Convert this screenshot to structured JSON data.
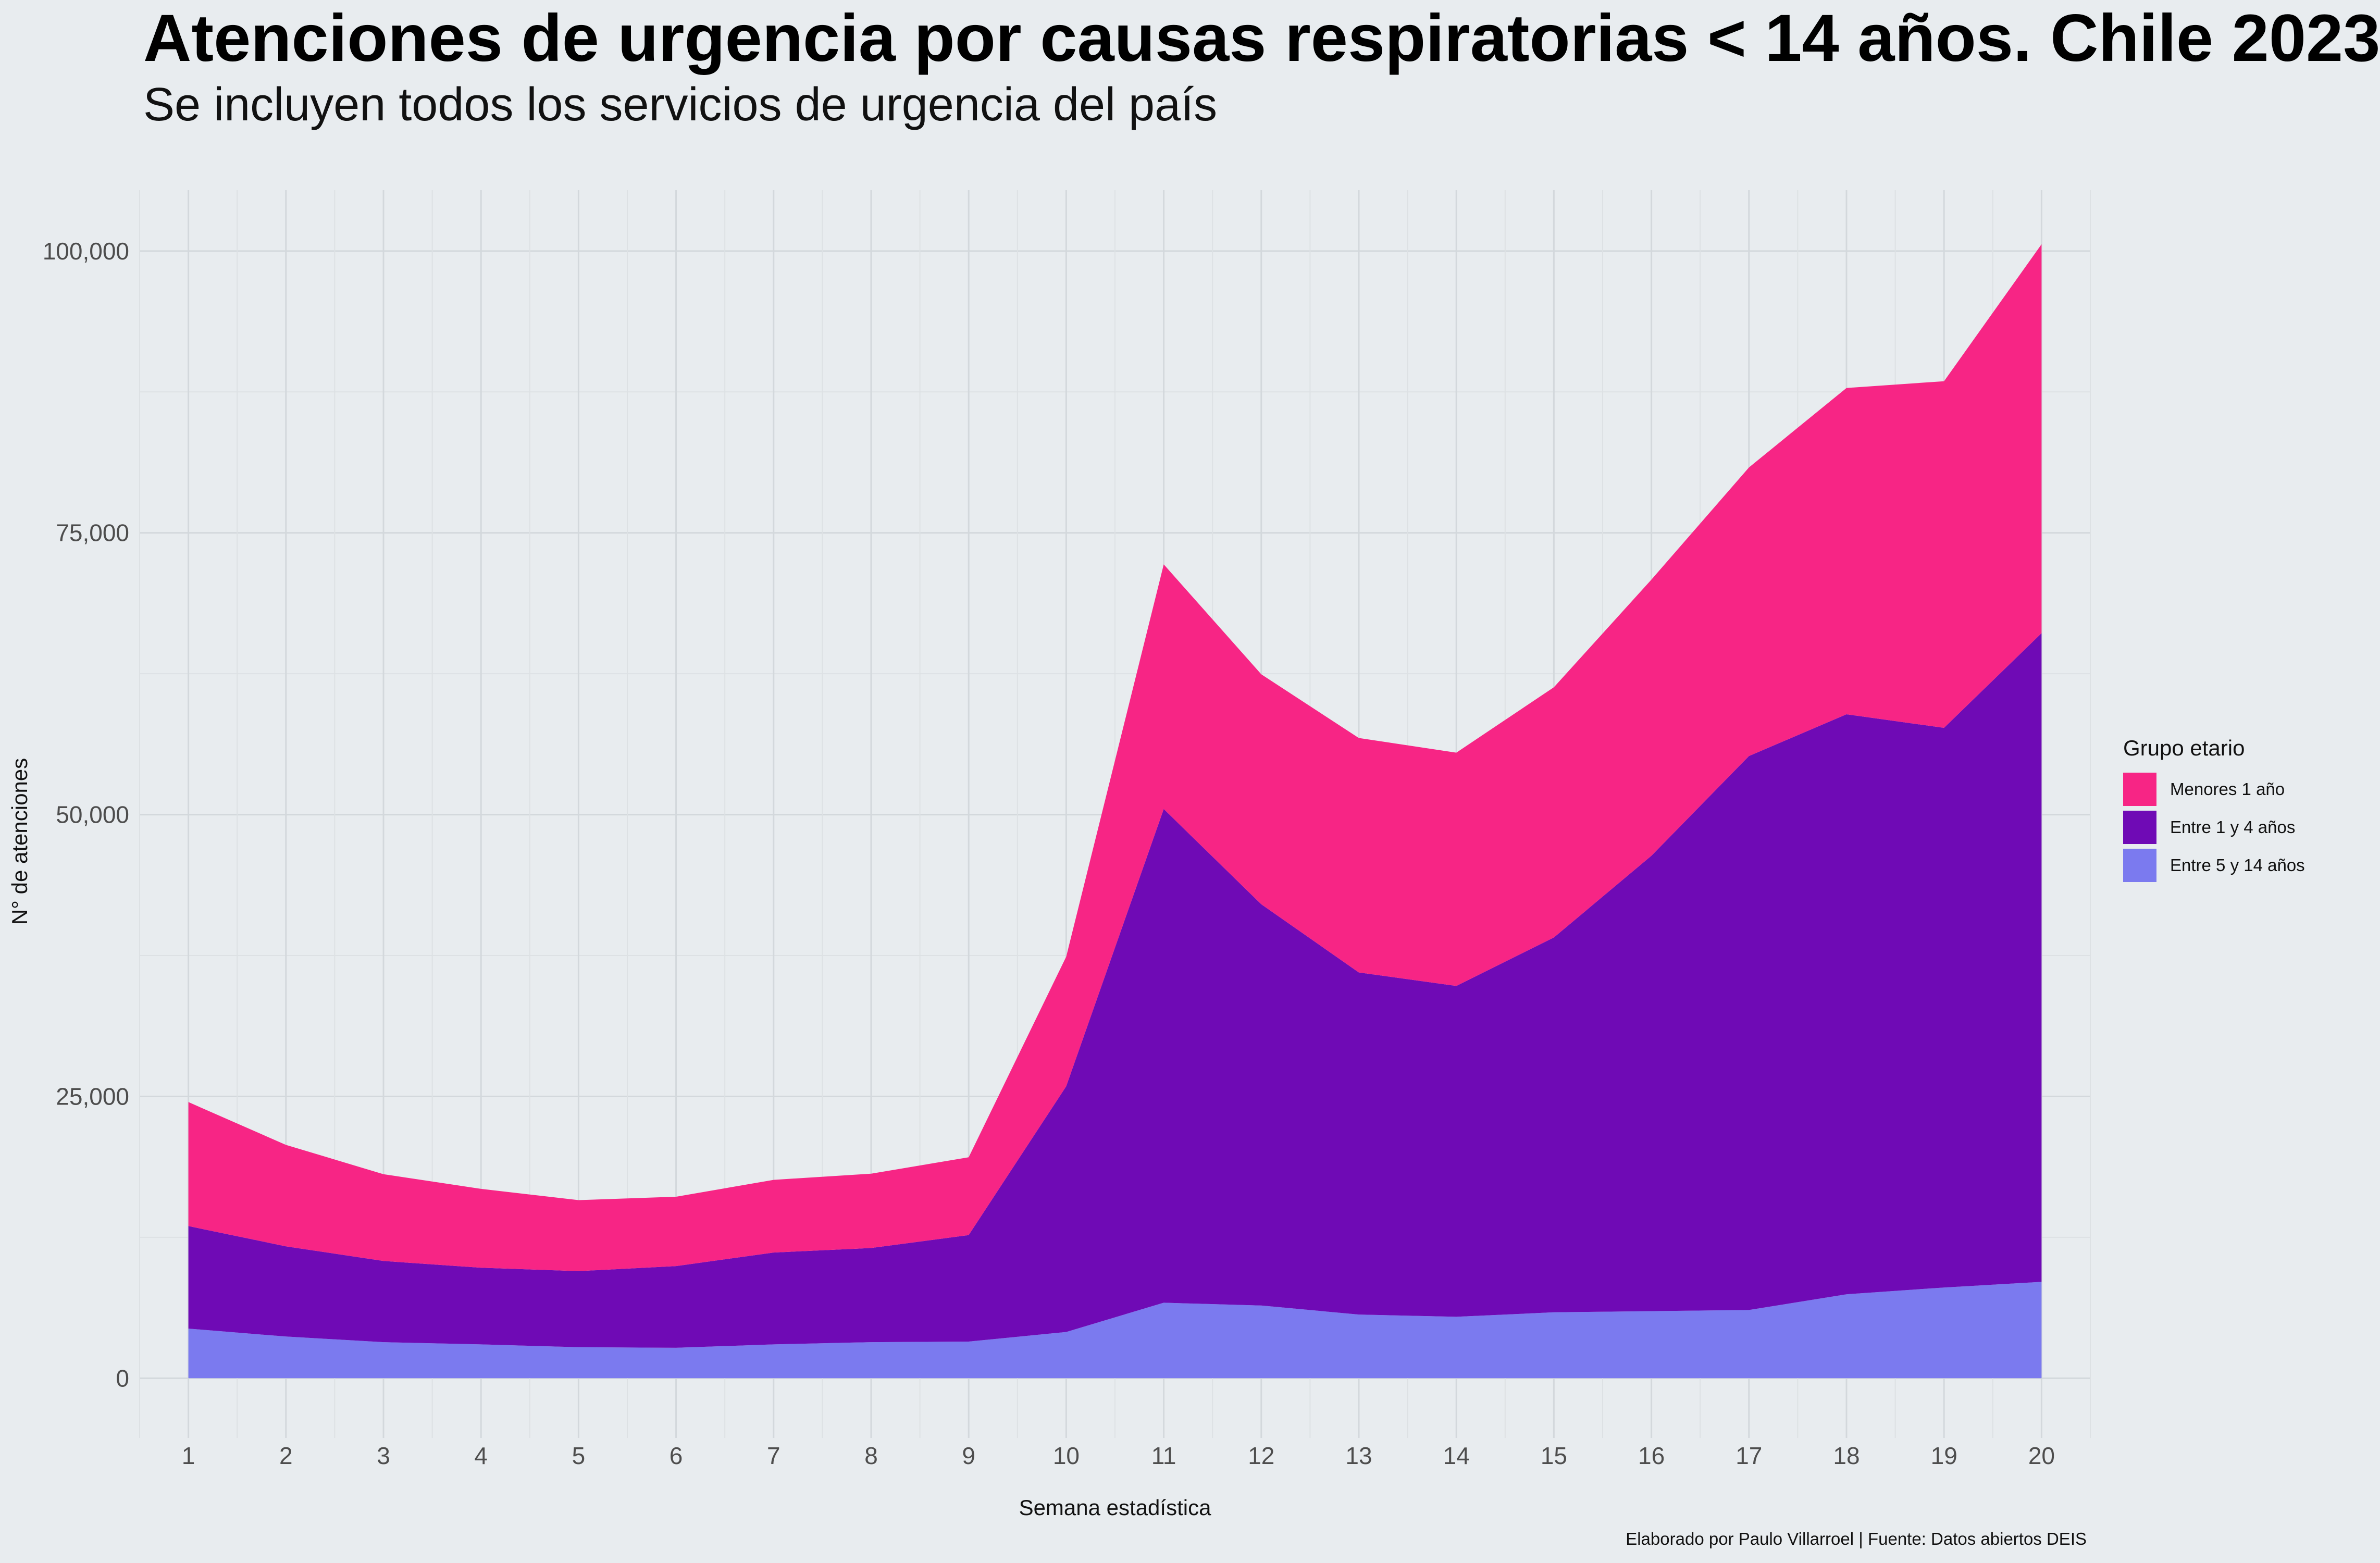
{
  "chart_data": {
    "type": "area",
    "stacked": true,
    "title": "Atenciones de urgencia por causas respiratorias < 14 años. Chile 2023",
    "subtitle": "Se incluyen todos los servicios de urgencia del país",
    "xlabel": "Semana estadística",
    "ylabel": "N° de atenciones",
    "x": [
      1,
      2,
      3,
      4,
      5,
      6,
      7,
      8,
      9,
      10,
      11,
      12,
      13,
      14,
      15,
      16,
      17,
      18,
      19,
      20
    ],
    "xlim": [
      0.5,
      20.5
    ],
    "ylim": [
      -5300,
      105400
    ],
    "yticks": [
      0,
      25000,
      50000,
      75000,
      100000
    ],
    "ytick_labels": [
      "0",
      "25,000",
      "50,000",
      "75,000",
      "100,000"
    ],
    "grid": true,
    "legend_title": "Grupo etario",
    "legend_position": "right",
    "series": [
      {
        "name": "Entre 5 y 14 años",
        "color": "#7b7aef",
        "values": [
          4400,
          3700,
          3200,
          3000,
          2750,
          2700,
          3000,
          3200,
          3250,
          4100,
          6700,
          6450,
          5650,
          5450,
          5850,
          5950,
          6050,
          7450,
          8050,
          8550
        ]
      },
      {
        "name": "Entre 1 y 4 años",
        "color": "#6f0ab5",
        "values": [
          9100,
          8000,
          7200,
          6800,
          6750,
          7250,
          8150,
          8350,
          9450,
          21800,
          43800,
          35600,
          30350,
          29350,
          33250,
          40400,
          49150,
          51450,
          49650,
          57550
        ]
      },
      {
        "name": "Menores 1 año",
        "color": "#f72585",
        "values": [
          11000,
          9000,
          7700,
          7000,
          6300,
          6150,
          6450,
          6600,
          6900,
          11500,
          21700,
          20400,
          20800,
          20700,
          22200,
          24500,
          25600,
          28950,
          30750,
          34500
        ]
      }
    ],
    "legend_order": [
      "Menores 1 año",
      "Entre 1 y 4 años",
      "Entre 5 y 14 años"
    ],
    "caption": "Elaborado por Paulo Villarroel | Fuente: Datos abiertos DEIS"
  }
}
